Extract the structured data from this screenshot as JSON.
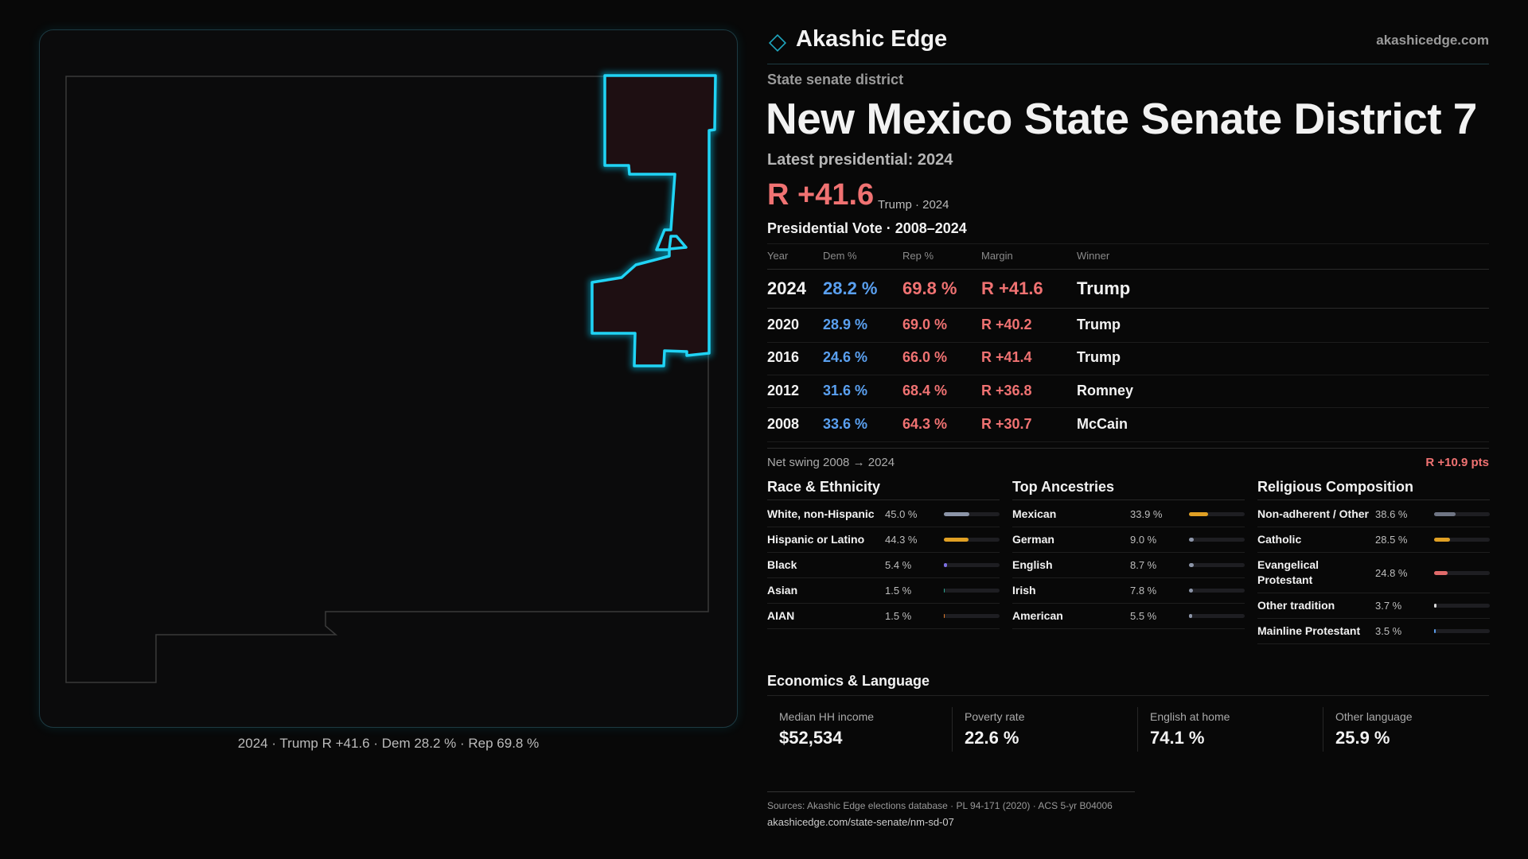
{
  "header": {
    "brand": "Akashic Edge",
    "site": "akashicedge.com"
  },
  "kicker": "State senate district",
  "title": "New Mexico State Senate District 7",
  "latest_label": "Latest presidential: 2024",
  "headline": {
    "margin": "R +41.6",
    "note": "Trump · 2024"
  },
  "map_caption": "2024 · Trump R +41.6 · Dem 28.2 % · Rep 69.8 %",
  "table": {
    "title": "Presidential Vote · 2008–2024",
    "columns": [
      "Year",
      "Dem %",
      "Rep %",
      "Margin",
      "Winner"
    ],
    "rows": [
      [
        "2024",
        "28.2 %",
        "69.8 %",
        "R +41.6",
        "Trump"
      ],
      [
        "2020",
        "28.9 %",
        "69.0 %",
        "R +40.2",
        "Trump"
      ],
      [
        "2016",
        "24.6 %",
        "66.0 %",
        "R +41.4",
        "Trump"
      ],
      [
        "2012",
        "31.6 %",
        "68.4 %",
        "R +36.8",
        "Romney"
      ],
      [
        "2008",
        "33.6 %",
        "64.3 %",
        "R +30.7",
        "McCain"
      ]
    ]
  },
  "swing": {
    "label": "Net swing 2008 → 2024",
    "value": "R +10.9 pts"
  },
  "groups": [
    {
      "title": "Race & Ethnicity",
      "items": [
        {
          "name": "White, non-Hispanic",
          "share": {
            "value": 45.0,
            "label": "45.0 %"
          },
          "color": "#8c95a8"
        },
        {
          "name": "Hispanic or Latino",
          "share": {
            "value": 44.3,
            "label": "44.3 %"
          },
          "color": "#e0a024"
        },
        {
          "name": "Black",
          "share": {
            "value": 5.4,
            "label": "5.4 %"
          },
          "color": "#7b6fe0"
        },
        {
          "name": "Asian",
          "share": {
            "value": 1.5,
            "label": "1.5 %"
          },
          "color": "#2aa58f"
        },
        {
          "name": "AIAN",
          "share": {
            "value": 1.5,
            "label": "1.5 %"
          },
          "color": "#e07a2a"
        }
      ]
    },
    {
      "title": "Top Ancestries",
      "items": [
        {
          "name": "Mexican",
          "share": {
            "value": 33.9,
            "label": "33.9 %"
          },
          "color": "#e0a024"
        },
        {
          "name": "German",
          "share": {
            "value": 9.0,
            "label": "9.0 %"
          },
          "color": "#8c95a8"
        },
        {
          "name": "English",
          "share": {
            "value": 8.7,
            "label": "8.7 %"
          },
          "color": "#8c95a8"
        },
        {
          "name": "Irish",
          "share": {
            "value": 7.8,
            "label": "7.8 %"
          },
          "color": "#8c95a8"
        },
        {
          "name": "American",
          "share": {
            "value": 5.5,
            "label": "5.5 %"
          },
          "color": "#8c95a8"
        }
      ]
    },
    {
      "title": "Religious Composition",
      "items": [
        {
          "name": "Non-adherent / Other",
          "share": {
            "value": 38.6,
            "label": "38.6 %"
          },
          "color": "#6f7584"
        },
        {
          "name": "Catholic",
          "share": {
            "value": 28.5,
            "label": "28.5 %"
          },
          "color": "#e0a024"
        },
        {
          "name": "Evangelical Protestant",
          "share": {
            "value": 24.8,
            "label": "24.8 %"
          },
          "color": "#e06a6a"
        },
        {
          "name": "Other tradition",
          "share": {
            "value": 3.7,
            "label": "3.7 %"
          },
          "color": "#d8d8d8"
        },
        {
          "name": "Mainline Protestant",
          "share": {
            "value": 3.5,
            "label": "3.5 %"
          },
          "color": "#5a9be8"
        }
      ]
    }
  ],
  "economics": {
    "title": "Economics & Language",
    "items": [
      {
        "label": "Median HH income",
        "value": "$52,534"
      },
      {
        "label": "Poverty rate",
        "value": "22.6 %"
      },
      {
        "label": "English at home",
        "value": "74.1 %"
      },
      {
        "label": "Other language",
        "value": "25.9 %"
      }
    ]
  },
  "sources": "Sources: Akashic Edge elections database · PL 94-171 (2020) · ACS 5-yr B04006",
  "url": "akashicedge.com/state-senate/nm-sd-07"
}
